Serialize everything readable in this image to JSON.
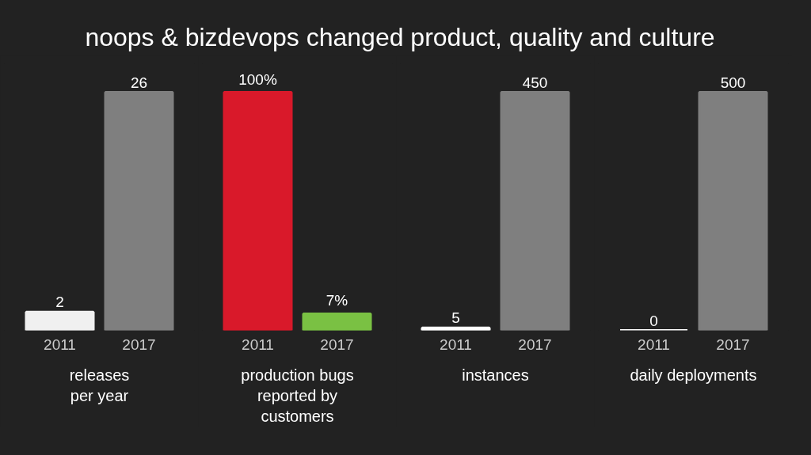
{
  "chart_data": [
    {
      "type": "bar",
      "title": "noops & bizdevops changed product, quality and culture",
      "categories": [
        "2011",
        "2017"
      ],
      "values": [
        2,
        26
      ],
      "colors": [
        "#f0f0f0",
        "#7f7f7f"
      ],
      "data_labels": true,
      "xlabel": "releases\nper year"
    },
    {
      "type": "bar",
      "categories": [
        "2011",
        "2017"
      ],
      "values": [
        100,
        7
      ],
      "colors": [
        "#d9192a",
        "#7ac143"
      ],
      "value_labels": [
        "100%",
        "7%"
      ],
      "xlabel": "production bugs\nreported by\ncustomers"
    },
    {
      "type": "bar",
      "categories": [
        "2011",
        "2017"
      ],
      "values": [
        5,
        450
      ],
      "colors": [
        "#ffffff",
        "#7f7f7f"
      ],
      "data_labels": true,
      "xlabel": "instances"
    },
    {
      "type": "bar",
      "categories": [
        "2011",
        "2017"
      ],
      "values": [
        0,
        500
      ],
      "colors": [
        "#ffffff",
        "#7f7f7f"
      ],
      "data_labels": true,
      "xlabel": "daily deployments"
    }
  ]
}
